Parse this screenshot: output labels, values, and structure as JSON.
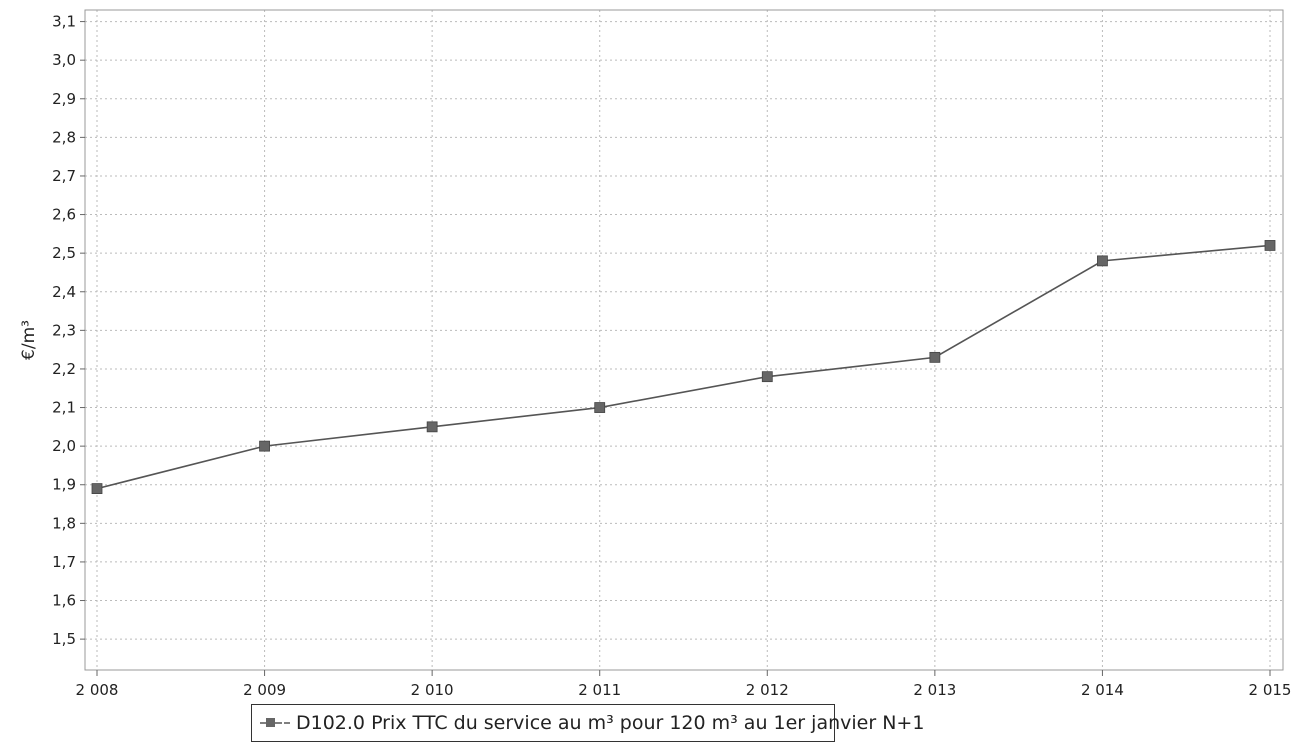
{
  "chart_data": {
    "type": "line",
    "title": "",
    "xlabel": "",
    "ylabel": "€/m³",
    "x": [
      "2 008",
      "2 009",
      "2 010",
      "2 011",
      "2 012",
      "2 013",
      "2 014",
      "2 015"
    ],
    "ylim": [
      1.42,
      3.13
    ],
    "yticks": [
      "1,5",
      "1,6",
      "1,7",
      "1,8",
      "1,9",
      "2,0",
      "2,1",
      "2,2",
      "2,3",
      "2,4",
      "2,5",
      "2,6",
      "2,7",
      "2,8",
      "2,9",
      "3,0",
      "3,1"
    ],
    "ytick_values": [
      1.5,
      1.6,
      1.7,
      1.8,
      1.9,
      2.0,
      2.1,
      2.2,
      2.3,
      2.4,
      2.5,
      2.6,
      2.7,
      2.8,
      2.9,
      3.0,
      3.1
    ],
    "grid": true,
    "legend_position": "bottom",
    "series": [
      {
        "name": "D102.0 Prix TTC du service au m³ pour 120 m³ au 1er janvier N+1",
        "values": [
          1.89,
          2.0,
          2.05,
          2.1,
          2.18,
          2.23,
          2.48,
          2.52
        ],
        "color": "#555555",
        "marker_color": "#666666"
      }
    ]
  }
}
